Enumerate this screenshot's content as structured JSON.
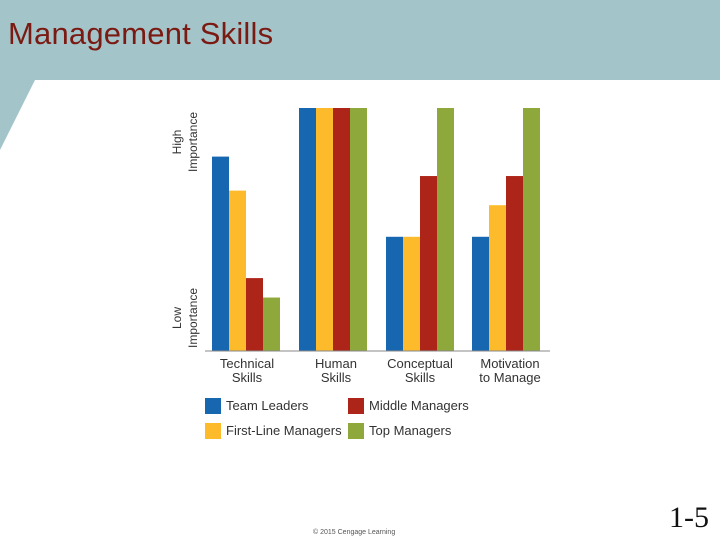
{
  "slide": {
    "title": "Management Skills",
    "copyright": "© 2015 Cengage Learning",
    "page_number": "1-5"
  },
  "chart_data": {
    "type": "bar",
    "title": "",
    "xlabel": "",
    "ylabel": "",
    "y_axis_labels": {
      "high": [
        "High",
        "Importance"
      ],
      "low": [
        "Low",
        "Importance"
      ]
    },
    "categories": [
      [
        "Technical",
        "Skills"
      ],
      [
        "Human",
        "Skills"
      ],
      [
        "Conceptual",
        "Skills"
      ],
      [
        "Motivation",
        "to Manage"
      ]
    ],
    "ylim": [
      0,
      100
    ],
    "grid": false,
    "legend_position": "bottom",
    "series": [
      {
        "name": "Team Leaders",
        "color": "#1666b0",
        "values": [
          80,
          100,
          47,
          47
        ]
      },
      {
        "name": "First-Line Managers",
        "color": "#fdba2a",
        "values": [
          66,
          100,
          47,
          60
        ]
      },
      {
        "name": "Middle Managers",
        "color": "#ad2418",
        "values": [
          30,
          100,
          72,
          72
        ]
      },
      {
        "name": "Top Managers",
        "color": "#8fa83c",
        "values": [
          22,
          100,
          100,
          100
        ]
      }
    ]
  }
}
